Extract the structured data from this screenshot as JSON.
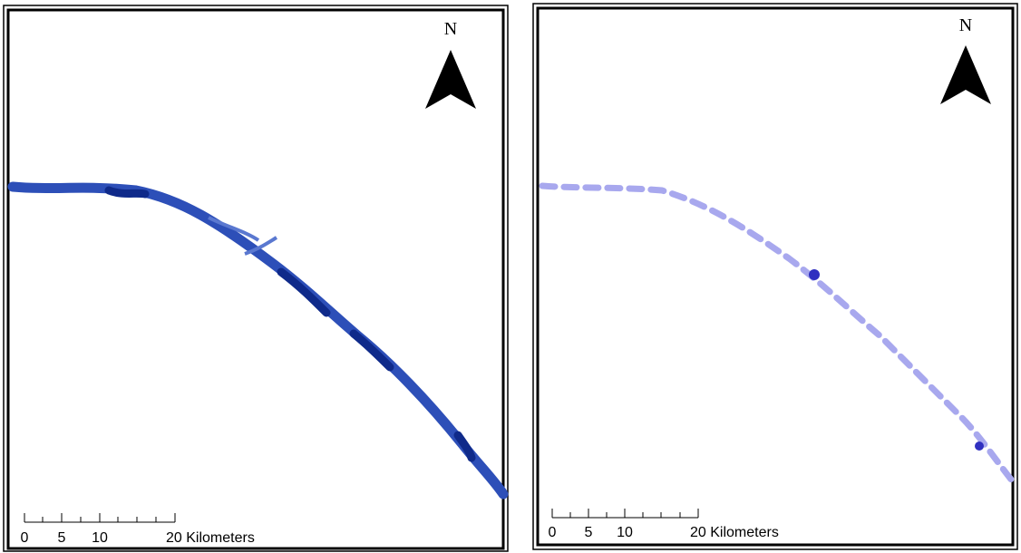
{
  "panels": [
    {
      "north": "N",
      "scale_labels": [
        "0",
        "5",
        "10",
        "20 Kilometers"
      ]
    },
    {
      "north": "N",
      "scale_labels": [
        "0",
        "5",
        "10",
        "20 Kilometers"
      ]
    }
  ]
}
